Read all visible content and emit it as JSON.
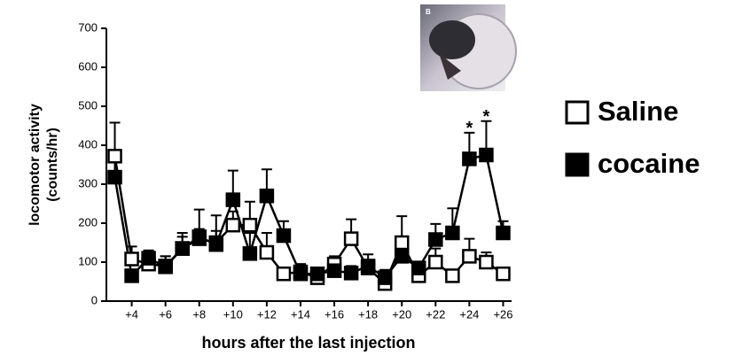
{
  "chart_data": {
    "type": "line",
    "ylabel": [
      "locomotor activity",
      "(counts/hr)"
    ],
    "xlabel": "hours after the last injection",
    "inset_label": "B",
    "x": [
      3,
      4,
      5,
      6,
      7,
      8,
      9,
      10,
      11,
      12,
      13,
      14,
      15,
      16,
      17,
      18,
      19,
      20,
      21,
      22,
      23,
      24,
      25,
      26
    ],
    "series": [
      {
        "name": "Saline",
        "color": "#000000",
        "fill": "#ffffff",
        "values": [
          372,
          108,
          95,
          90,
          135,
          160,
          150,
          195,
          195,
          125,
          70,
          75,
          60,
          95,
          160,
          85,
          45,
          150,
          65,
          100,
          65,
          115,
          100,
          70
        ],
        "errors": [
          86,
          32,
          20,
          25,
          30,
          25,
          30,
          35,
          60,
          50,
          15,
          20,
          10,
          20,
          50,
          20,
          15,
          68,
          15,
          35,
          10,
          45,
          25,
          10
        ]
      },
      {
        "name": "cocaine",
        "color": "#000000",
        "fill": "#000000",
        "values": [
          318,
          65,
          110,
          88,
          135,
          165,
          145,
          260,
          122,
          270,
          168,
          70,
          70,
          78,
          72,
          90,
          60,
          115,
          85,
          158,
          175,
          365,
          375,
          175
        ],
        "errors": [
          67,
          10,
          20,
          27,
          40,
          70,
          75,
          75,
          53,
          68,
          37,
          25,
          10,
          27,
          18,
          30,
          20,
          25,
          15,
          40,
          63,
          67,
          87,
          30
        ]
      }
    ],
    "annotations": [
      {
        "x": 24,
        "text": "*"
      },
      {
        "x": 25,
        "text": "*"
      }
    ],
    "xlim": [
      2.5,
      26.5
    ],
    "xticks": [
      {
        "value": 4,
        "label": "+4"
      },
      {
        "value": 6,
        "label": "+6"
      },
      {
        "value": 8,
        "label": "+8"
      },
      {
        "value": 10,
        "label": "+10"
      },
      {
        "value": 12,
        "label": "+12"
      },
      {
        "value": 14,
        "label": "+14"
      },
      {
        "value": 16,
        "label": "+16"
      },
      {
        "value": 18,
        "label": "+18"
      },
      {
        "value": 20,
        "label": "+20"
      },
      {
        "value": 22,
        "label": "+22"
      },
      {
        "value": 24,
        "label": "+24"
      },
      {
        "value": 26,
        "label": "+26"
      }
    ],
    "ylim": [
      0,
      700
    ],
    "yticks": [
      0,
      100,
      200,
      300,
      400,
      500,
      600,
      700
    ]
  }
}
